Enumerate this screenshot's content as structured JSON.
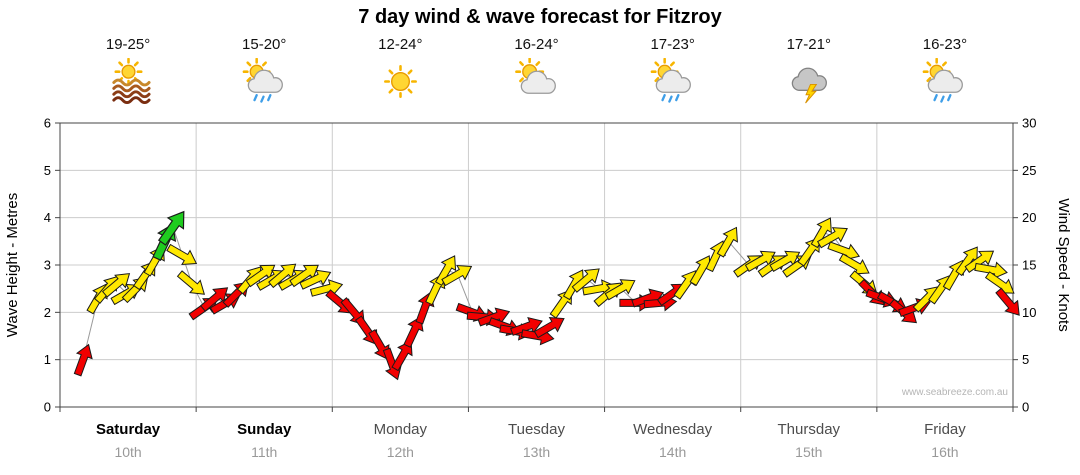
{
  "title": "7 day wind & wave forecast for Fitzroy",
  "watermark": "www.seabreeze.com.au",
  "axes": {
    "left_label": "Wave Height - Metres",
    "right_label": "Wind Speed - Knots",
    "left_ticks": [
      0,
      1,
      2,
      3,
      4,
      5,
      6
    ],
    "right_ticks": [
      0,
      5,
      10,
      15,
      20,
      25,
      30
    ]
  },
  "days": [
    {
      "name": "Saturday",
      "date": "10th",
      "temp": "19-25°",
      "icon": "sun-waves",
      "bold": true
    },
    {
      "name": "Sunday",
      "date": "11th",
      "temp": "15-20°",
      "icon": "sun-cloud-rain",
      "bold": true
    },
    {
      "name": "Monday",
      "date": "12th",
      "temp": "12-24°",
      "icon": "sun",
      "bold": false
    },
    {
      "name": "Tuesday",
      "date": "13th",
      "temp": "16-24°",
      "icon": "sun-cloud",
      "bold": false
    },
    {
      "name": "Wednesday",
      "date": "14th",
      "temp": "17-23°",
      "icon": "sun-cloud-rain",
      "bold": false
    },
    {
      "name": "Thursday",
      "date": "15th",
      "temp": "17-21°",
      "icon": "storm",
      "bold": false
    },
    {
      "name": "Friday",
      "date": "16th",
      "temp": "16-23°",
      "icon": "sun-cloud-rain",
      "bold": false
    }
  ],
  "chart_data": {
    "type": "line",
    "marker": "wind-arrow",
    "title": "7 day wind & wave forecast for Fitzroy",
    "x_range_days": [
      0,
      7
    ],
    "y_left": {
      "label": "Wave Height - Metres",
      "lim": [
        0,
        6
      ]
    },
    "y_right": {
      "label": "Wind Speed - Knots",
      "lim": [
        0,
        30
      ]
    },
    "note": "Axes aligned so 1 metre = 5 knots. Arrow colour = wind strength band, dir_deg = arrow heading (0 = up, clockwise).",
    "colors": {
      "red": "#F20000",
      "yellow": "#FFE800",
      "green": "#1FCC1F",
      "line": "#9a9a9a"
    },
    "points_columns": [
      "day_x",
      "knots",
      "color",
      "dir_deg"
    ],
    "points": [
      [
        0.17,
        5,
        "red",
        20
      ],
      [
        0.28,
        11.5,
        "yellow",
        30
      ],
      [
        0.35,
        12.5,
        "yellow",
        40
      ],
      [
        0.42,
        13,
        "yellow",
        50
      ],
      [
        0.49,
        12,
        "yellow",
        60
      ],
      [
        0.56,
        12.5,
        "yellow",
        45
      ],
      [
        0.63,
        14,
        "yellow",
        35
      ],
      [
        0.7,
        15.5,
        "yellow",
        30
      ],
      [
        0.77,
        17.5,
        "green",
        25
      ],
      [
        0.83,
        19,
        "green",
        35
      ],
      [
        0.9,
        16,
        "yellow",
        120
      ],
      [
        0.97,
        13,
        "yellow",
        130
      ],
      [
        1.06,
        10.5,
        "red",
        55
      ],
      [
        1.14,
        11.5,
        "red",
        50
      ],
      [
        1.22,
        11,
        "red",
        60
      ],
      [
        1.3,
        12,
        "red",
        45
      ],
      [
        1.4,
        13.5,
        "yellow",
        40
      ],
      [
        1.48,
        14,
        "yellow",
        55
      ],
      [
        1.56,
        13.5,
        "yellow",
        60
      ],
      [
        1.64,
        14,
        "yellow",
        50
      ],
      [
        1.72,
        13.5,
        "yellow",
        60
      ],
      [
        1.8,
        14,
        "yellow",
        55
      ],
      [
        1.88,
        13.5,
        "yellow",
        65
      ],
      [
        1.96,
        12.5,
        "yellow",
        75
      ],
      [
        2.06,
        11,
        "red",
        130
      ],
      [
        2.16,
        10,
        "red",
        140
      ],
      [
        2.26,
        8,
        "red",
        145
      ],
      [
        2.35,
        6.5,
        "red",
        150
      ],
      [
        2.44,
        4.5,
        "red",
        160
      ],
      [
        2.52,
        5.5,
        "red",
        30
      ],
      [
        2.6,
        8,
        "red",
        25
      ],
      [
        2.68,
        10.5,
        "red",
        20
      ],
      [
        2.76,
        12.5,
        "yellow",
        25
      ],
      [
        2.84,
        14.5,
        "yellow",
        30
      ],
      [
        2.92,
        14,
        "yellow",
        60
      ],
      [
        3.03,
        10,
        "red",
        110
      ],
      [
        3.11,
        9.5,
        "red",
        95
      ],
      [
        3.19,
        9.5,
        "red",
        70
      ],
      [
        3.27,
        8.5,
        "red",
        110
      ],
      [
        3.35,
        8,
        "red",
        100
      ],
      [
        3.43,
        8.5,
        "red",
        70
      ],
      [
        3.51,
        7.5,
        "red",
        100
      ],
      [
        3.6,
        8.5,
        "red",
        60
      ],
      [
        3.69,
        11,
        "yellow",
        35
      ],
      [
        3.78,
        13,
        "yellow",
        30
      ],
      [
        3.87,
        13.5,
        "yellow",
        50
      ],
      [
        3.96,
        12.5,
        "yellow",
        80
      ],
      [
        4.03,
        12,
        "yellow",
        50
      ],
      [
        4.12,
        12.5,
        "yellow",
        60
      ],
      [
        4.23,
        11,
        "red",
        90
      ],
      [
        4.32,
        11.5,
        "red",
        70
      ],
      [
        4.41,
        11,
        "red",
        85
      ],
      [
        4.5,
        12,
        "red",
        55
      ],
      [
        4.6,
        13,
        "yellow",
        35
      ],
      [
        4.71,
        14.5,
        "yellow",
        30
      ],
      [
        4.82,
        16,
        "yellow",
        25
      ],
      [
        4.91,
        17.5,
        "yellow",
        30
      ],
      [
        5.06,
        15,
        "yellow",
        55
      ],
      [
        5.15,
        15.5,
        "yellow",
        60
      ],
      [
        5.24,
        15,
        "yellow",
        55
      ],
      [
        5.33,
        15.5,
        "yellow",
        60
      ],
      [
        5.42,
        15,
        "yellow",
        55
      ],
      [
        5.51,
        16.5,
        "yellow",
        35
      ],
      [
        5.6,
        18.5,
        "yellow",
        30
      ],
      [
        5.68,
        18,
        "yellow",
        60
      ],
      [
        5.76,
        16.5,
        "yellow",
        110
      ],
      [
        5.84,
        15,
        "yellow",
        120
      ],
      [
        5.91,
        13,
        "yellow",
        130
      ],
      [
        5.97,
        12,
        "red",
        135
      ],
      [
        6.04,
        11.5,
        "red",
        110
      ],
      [
        6.12,
        11,
        "red",
        120
      ],
      [
        6.2,
        10,
        "red",
        130
      ],
      [
        6.28,
        10.5,
        "red",
        70
      ],
      [
        6.37,
        11.5,
        "yellow",
        45
      ],
      [
        6.47,
        12.5,
        "yellow",
        35
      ],
      [
        6.57,
        14,
        "yellow",
        30
      ],
      [
        6.67,
        15.5,
        "yellow",
        35
      ],
      [
        6.76,
        15.5,
        "yellow",
        55
      ],
      [
        6.84,
        14.5,
        "yellow",
        100
      ],
      [
        6.91,
        13,
        "yellow",
        125
      ],
      [
        6.97,
        11,
        "red",
        140
      ]
    ]
  }
}
